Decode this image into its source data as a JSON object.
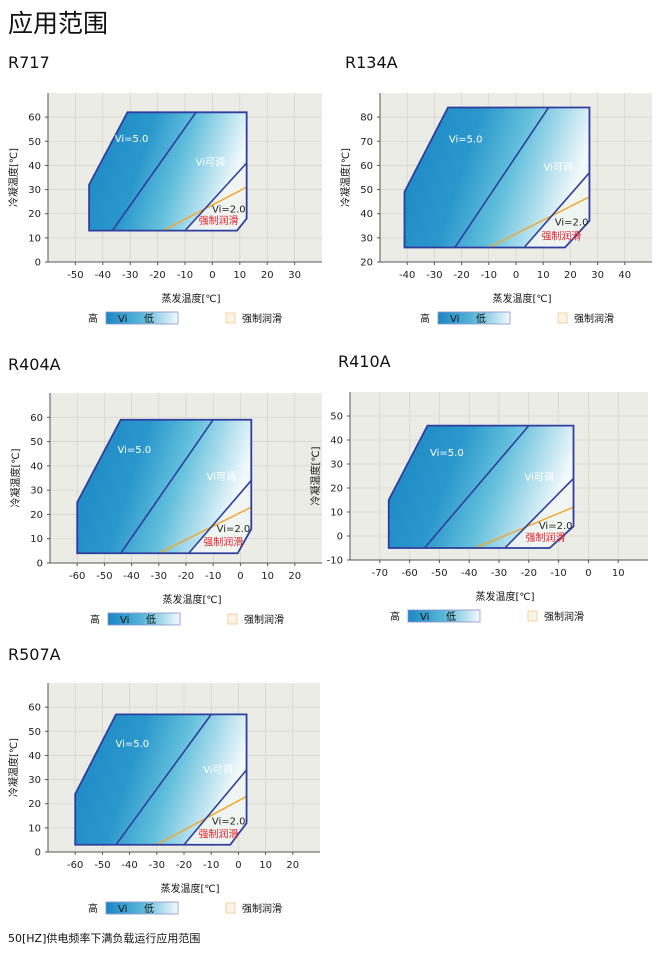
{
  "page_title": "应用范围",
  "footnote": "50[HZ]供电频率下满负载运行应用范围",
  "colors": {
    "envelope_dark": "#1b86c4",
    "envelope_light": "#f2f9fc",
    "border": "#2f3e9e",
    "lubrication_line": "#f0a830",
    "lubrication_text": "#e8202a",
    "plot_bg": "#ecece6",
    "grid": "#d6d6cf"
  },
  "legend": {
    "high": "高",
    "vi": "Vi",
    "low": "低",
    "forced_lubrication": "强制润滑"
  },
  "chart_data": [
    {
      "type": "area",
      "title": "R717",
      "xlabel": "蒸发温度[℃]",
      "ylabel": "冷凝温度[℃]",
      "xlim": [
        -60,
        40
      ],
      "ylim": [
        0,
        70
      ],
      "xticks": [
        -50,
        -40,
        -30,
        -20,
        -10,
        0,
        10,
        20,
        30
      ],
      "yticks": [
        0,
        10,
        20,
        30,
        40,
        50,
        60
      ],
      "envelope": [
        [
          -45,
          13
        ],
        [
          -45,
          32
        ],
        [
          -31,
          62
        ],
        [
          12.5,
          62
        ],
        [
          12.5,
          18
        ],
        [
          9,
          13
        ]
      ],
      "vi5_line": [
        [
          -36.5,
          13
        ],
        [
          -6,
          62
        ]
      ],
      "vi2_line": [
        [
          -10,
          13
        ],
        [
          12.5,
          41
        ]
      ],
      "lubrication_line": [
        [
          -18,
          13
        ],
        [
          12.5,
          31
        ]
      ],
      "labels": {
        "vi5": "Vi=5.0",
        "vi_adj": "Vi可调",
        "vi2": "Vi=2.0",
        "lub": "强制润滑"
      }
    },
    {
      "type": "area",
      "title": "R134A",
      "xlabel": "蒸发温度[℃]",
      "ylabel": "冷凝温度[℃]",
      "xlim": [
        -50,
        50
      ],
      "ylim": [
        20,
        90
      ],
      "xticks": [
        -40,
        -30,
        -20,
        -10,
        0,
        10,
        20,
        30,
        40
      ],
      "yticks": [
        20,
        30,
        40,
        50,
        60,
        70,
        80
      ],
      "envelope": [
        [
          -41,
          26
        ],
        [
          -41,
          49
        ],
        [
          -25,
          84
        ],
        [
          27,
          84
        ],
        [
          27,
          37
        ],
        [
          18,
          26
        ]
      ],
      "vi5_line": [
        [
          -22.5,
          26
        ],
        [
          12,
          84
        ]
      ],
      "vi2_line": [
        [
          3,
          26
        ],
        [
          27,
          57
        ]
      ],
      "lubrication_line": [
        [
          -10,
          26
        ],
        [
          27,
          47
        ]
      ],
      "labels": {
        "vi5": "Vi=5.0",
        "vi_adj": "Vi可调",
        "vi2": "Vi=2.0",
        "lub": "强制润滑"
      }
    },
    {
      "type": "area",
      "title": "R404A",
      "xlabel": "蒸发温度[℃]",
      "ylabel": "冷凝温度[℃]",
      "xlim": [
        -70,
        30
      ],
      "ylim": [
        0,
        70
      ],
      "xticks": [
        -60,
        -50,
        -40,
        -30,
        -20,
        -10,
        0,
        10,
        20
      ],
      "yticks": [
        0,
        10,
        20,
        30,
        40,
        50,
        60
      ],
      "envelope": [
        [
          -60,
          4
        ],
        [
          -60,
          25
        ],
        [
          -44,
          59
        ],
        [
          4,
          59
        ],
        [
          4,
          14
        ],
        [
          -1,
          4
        ]
      ],
      "vi5_line": [
        [
          -44,
          4
        ],
        [
          -10,
          59
        ]
      ],
      "vi2_line": [
        [
          -19,
          4
        ],
        [
          4,
          34
        ]
      ],
      "lubrication_line": [
        [
          -30,
          4
        ],
        [
          4,
          23
        ]
      ],
      "labels": {
        "vi5": "Vi=5.0",
        "vi_adj": "Vi可调",
        "vi2": "Vi=2.0",
        "lub": "强制润滑"
      }
    },
    {
      "type": "area",
      "title": "R410A",
      "xlabel": "蒸发温度[℃]",
      "ylabel": "冷凝温度[℃]",
      "xlim": [
        -80,
        20
      ],
      "ylim": [
        -10,
        60
      ],
      "xticks": [
        -70,
        -60,
        -50,
        -40,
        -30,
        -20,
        -10,
        0,
        10
      ],
      "yticks": [
        -10,
        0,
        10,
        20,
        30,
        40,
        50
      ],
      "envelope": [
        [
          -67,
          -5
        ],
        [
          -67,
          15
        ],
        [
          -54,
          46
        ],
        [
          -5,
          46
        ],
        [
          -5,
          4
        ],
        [
          -13,
          -5
        ]
      ],
      "vi5_line": [
        [
          -55,
          -5
        ],
        [
          -20,
          46
        ]
      ],
      "vi2_line": [
        [
          -28,
          -5
        ],
        [
          -5,
          24
        ]
      ],
      "lubrication_line": [
        [
          -38,
          -5
        ],
        [
          -5,
          12
        ]
      ],
      "labels": {
        "vi5": "Vi=5.0",
        "vi_adj": "Vi可调",
        "vi2": "Vi=2.0",
        "lub": "强制润滑"
      }
    },
    {
      "type": "area",
      "title": "R507A",
      "xlabel": "蒸发温度[℃]",
      "ylabel": "冷凝温度[℃]",
      "xlim": [
        -70,
        30
      ],
      "ylim": [
        0,
        70
      ],
      "xticks": [
        -60,
        -50,
        -40,
        -30,
        -20,
        -10,
        0,
        10,
        20
      ],
      "yticks": [
        0,
        10,
        20,
        30,
        40,
        50,
        60
      ],
      "envelope": [
        [
          -60,
          3
        ],
        [
          -60,
          24
        ],
        [
          -45,
          57
        ],
        [
          3,
          57
        ],
        [
          3,
          12
        ],
        [
          -3,
          3
        ]
      ],
      "vi5_line": [
        [
          -45,
          3
        ],
        [
          -10,
          57
        ]
      ],
      "vi2_line": [
        [
          -20,
          3
        ],
        [
          3,
          34
        ]
      ],
      "lubrication_line": [
        [
          -30,
          3
        ],
        [
          3,
          23
        ]
      ],
      "labels": {
        "vi5": "Vi=5.0",
        "vi_adj": "Vi可调",
        "vi2": "Vi=2.0",
        "lub": "强制润滑"
      }
    }
  ]
}
